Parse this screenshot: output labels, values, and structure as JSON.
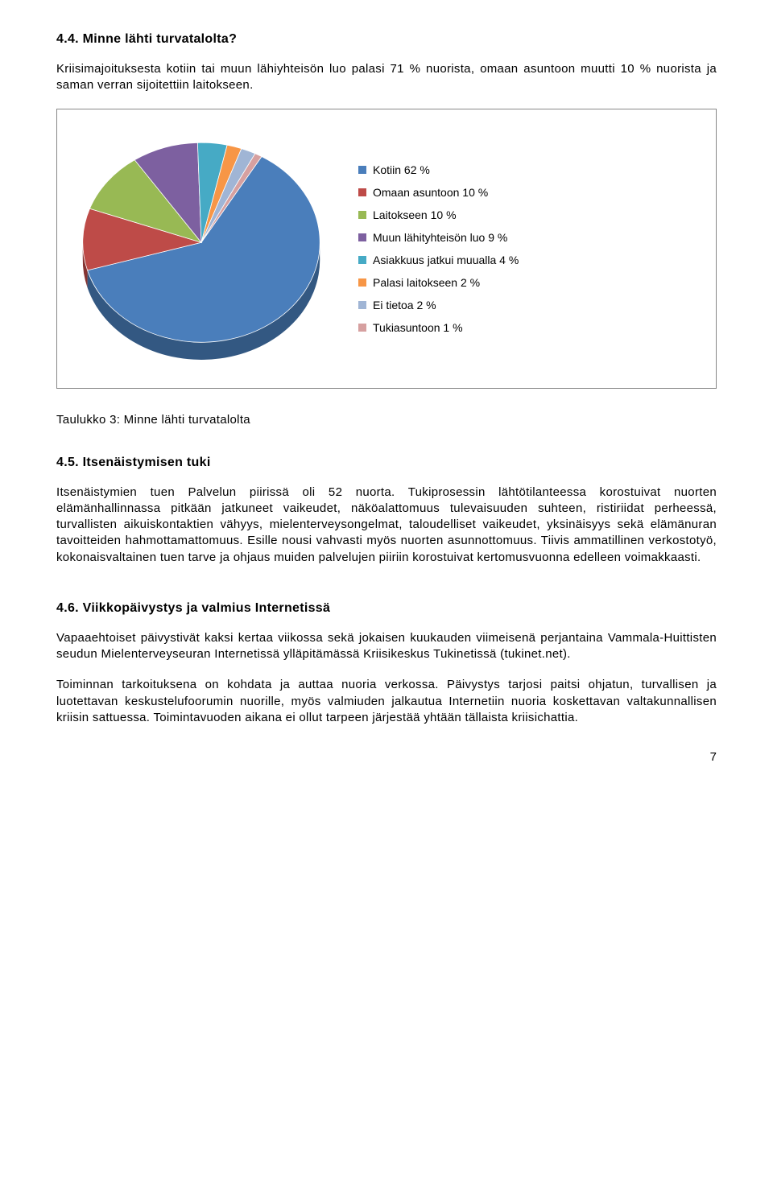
{
  "section44": {
    "heading": "4.4.  Minne lähti turvatalolta?",
    "para1": "Kriisimajoituksesta kotiin tai muun lähiyhteisön luo palasi 71 % nuorista, omaan asuntoon muutti 10 % nuorista ja saman verran sijoitettiin laitokseen."
  },
  "chart": {
    "type": "pie",
    "background_color": "#ffffff",
    "legend_fontsize": 14,
    "slices": [
      {
        "label": "Kotiin 62 %",
        "value": 62,
        "color": "#4a7ebb"
      },
      {
        "label": "Omaan asuntoon 10 %",
        "value": 10,
        "color": "#be4b48"
      },
      {
        "label": "Laitokseen 10 %",
        "value": 10,
        "color": "#98b954"
      },
      {
        "label": "Muun lähityhteisön luo 9 %",
        "value": 9,
        "color": "#7d60a0"
      },
      {
        "label": "Asiakkuus jatkui muualla 4 %",
        "value": 4,
        "color": "#46aac5"
      },
      {
        "label": "Palasi laitokseen 2 %",
        "value": 2,
        "color": "#f79646"
      },
      {
        "label": "Ei tietoa 2 %",
        "value": 2,
        "color": "#a0b5d5"
      },
      {
        "label": "Tukiasuntoon 1 %",
        "value": 1,
        "color": "#d6a0a0"
      }
    ]
  },
  "chart_caption": "Taulukko 3: Minne lähti turvatalolta",
  "section45": {
    "heading": "4.5.  Itsenäistymisen tuki",
    "para1": "Itsenäistymien tuen Palvelun piirissä oli 52 nuorta. Tukiprosessin lähtötilanteessa korostuivat nuorten elämänhallinnassa pitkään jatkuneet vaikeudet, näköalattomuus tulevaisuuden suhteen, ristiriidat perheessä, turvallisten aikuiskontaktien vähyys, mielenterveysongelmat, taloudelliset vaikeudet, yksinäisyys sekä elämänuran tavoitteiden hahmottamattomuus. Esille nousi vahvasti myös nuorten asunnottomuus. Tiivis ammatillinen verkostotyö, kokonaisvaltainen tuen tarve ja ohjaus muiden palvelujen piiriin korostuivat kertomusvuonna edelleen voimakkaasti."
  },
  "section46": {
    "heading": "4.6.  Viikkopäivystys ja valmius Internetissä",
    "para1": "Vapaaehtoiset päivystivät kaksi kertaa viikossa sekä jokaisen kuukauden viimeisenä perjantaina Vammala-Huittisten seudun Mielenterveyseuran Internetissä ylläpitämässä Kriisikeskus Tukinetissä (tukinet.net).",
    "para2": "Toiminnan tarkoituksena on kohdata ja auttaa nuoria verkossa. Päivystys tarjosi paitsi ohjatun, turvallisen ja luotettavan keskustelufoorumin nuorille, myös valmiuden jalkautua Internetiin nuoria koskettavan valtakunnallisen kriisin sattuessa. Toimintavuoden aikana ei ollut tarpeen järjestää yhtään tällaista kriisichattia."
  },
  "page_number": "7"
}
